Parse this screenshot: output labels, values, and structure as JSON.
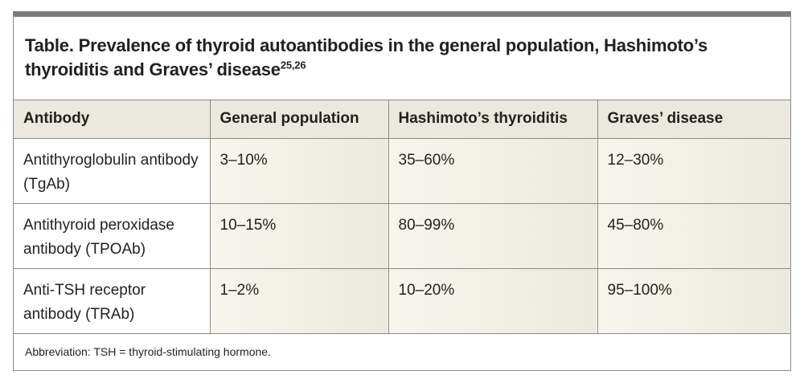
{
  "table": {
    "title": "Table. Prevalence of thyroid autoantibodies in the general population, Hashimoto’s thyroiditis and Graves’ disease",
    "title_superscript": "25,26",
    "headers": [
      "Antibody",
      "General population",
      "Hashimoto’s thyroiditis",
      "Graves’ disease"
    ],
    "rows": [
      [
        "Antithyroglobulin antibody (TgAb)",
        "3–10%",
        "35–60%",
        "12–30%"
      ],
      [
        "Antithyroid peroxidase antibody (TPOAb)",
        "10–15%",
        "80–99%",
        "45–80%"
      ],
      [
        "Anti-TSH receptor antibody (TRAb)",
        "1–2%",
        "10–20%",
        "95–100%"
      ]
    ],
    "footnote": "Abbreviation: TSH = thyroid-stimulating hormone."
  }
}
